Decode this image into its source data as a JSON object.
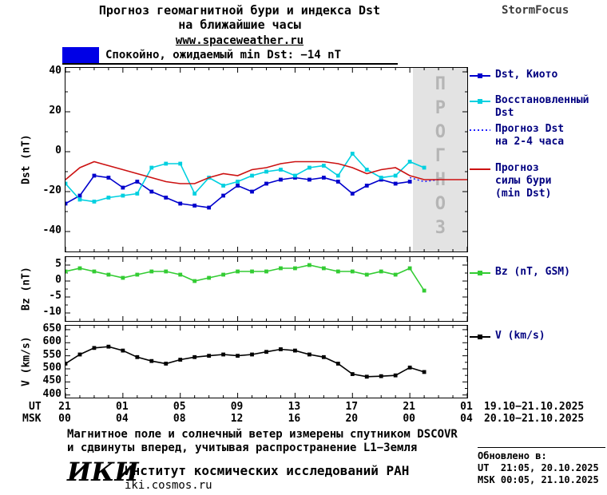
{
  "header": {
    "title_line1": "Прогноз геомагнитной бури и индекса Dst",
    "title_line2": "на ближайшие часы",
    "site": "www.spaceweather.ru",
    "brand": "StormFocus"
  },
  "status": {
    "label": "Спокойно, ожидаемый min Dst: −14 nT",
    "swatch_color": "#0000e6"
  },
  "xaxis": {
    "ut_label": "UT",
    "msk_label": "MSK",
    "ut_ticks": [
      "21",
      "01",
      "05",
      "09",
      "13",
      "17",
      "21",
      "01"
    ],
    "msk_ticks": [
      "00",
      "04",
      "08",
      "12",
      "16",
      "20",
      "00",
      "04"
    ],
    "ut_range": "19.10−21.10.2025",
    "msk_range": "20.10−21.10.2025"
  },
  "legend": {
    "dst_kyoto": {
      "line1": "Dst, Киото"
    },
    "restored": {
      "line1": "Восстановленный",
      "line2": "Dst"
    },
    "forecast_dst": {
      "line1": "Прогноз Dst",
      "line2": "на 2-4 часа"
    },
    "storm_force": {
      "line1": "Прогноз",
      "line2": "силы бури",
      "line3": "(min Dst)"
    },
    "bz": {
      "line1": "Bz (nT, GSM)"
    },
    "v": {
      "line1": "V (km/s)"
    }
  },
  "chart_data": [
    {
      "type": "line",
      "panel": "dst",
      "title": "Прогноз геомагнитной бури и индекса Dst на ближайшие часы",
      "ylabel": "Dst (nT)",
      "ylim": [
        -50,
        42
      ],
      "yticks": [
        40,
        20,
        0,
        -20,
        -40
      ],
      "yminor": [
        30,
        10,
        -10,
        -30
      ],
      "xlim": [
        0,
        28
      ],
      "forecast_band": {
        "from_hour": 24.2,
        "to_hour": 28,
        "label": "ПРОГНОЗ"
      },
      "series": [
        {
          "name": "Dst, Киото",
          "color": "#0000cc",
          "marker": "square",
          "x": [
            0,
            1,
            2,
            3,
            4,
            5,
            6,
            7,
            8,
            9,
            10,
            11,
            12,
            13,
            14,
            15,
            16,
            17,
            18,
            19,
            20,
            21,
            22,
            23,
            24
          ],
          "values": [
            -26,
            -22,
            -12,
            -13,
            -18,
            -15,
            -20,
            -23,
            -26,
            -27,
            -28,
            -22,
            -17,
            -20,
            -16,
            -14,
            -13,
            -14,
            -13,
            -15,
            -21,
            -17,
            -14,
            -16,
            -15
          ]
        },
        {
          "name": "Восстановленный Dst",
          "color": "#00d0e0",
          "marker": "square",
          "x": [
            0,
            1,
            2,
            3,
            4,
            5,
            6,
            7,
            8,
            9,
            10,
            11,
            12,
            13,
            14,
            15,
            16,
            17,
            18,
            19,
            20,
            21,
            22,
            23,
            24,
            25
          ],
          "values": [
            -16,
            -24,
            -25,
            -23,
            -22,
            -21,
            -8,
            -6,
            -6,
            -21,
            -13,
            -17,
            -15,
            -12,
            -10,
            -9,
            -12,
            -8,
            -7,
            -12,
            -1,
            -9,
            -13,
            -12,
            -5,
            -8
          ]
        },
        {
          "name": "Прогноз Dst на 2-4 часа",
          "color": "#2222ff",
          "dash": "dotted",
          "x": [
            24,
            25,
            26
          ],
          "values": [
            -13,
            -15,
            -14
          ]
        },
        {
          "name": "Прогноз силы бури (min Dst)",
          "color": "#cc1111",
          "x": [
            0,
            1,
            2,
            3,
            4,
            5,
            6,
            7,
            8,
            9,
            10,
            11,
            12,
            13,
            14,
            15,
            16,
            17,
            18,
            19,
            20,
            21,
            22,
            23,
            24,
            25,
            26,
            27,
            28
          ],
          "values": [
            -14,
            -8,
            -5,
            -7,
            -9,
            -11,
            -13,
            -15,
            -16,
            -16,
            -13,
            -11,
            -12,
            -9,
            -8,
            -6,
            -5,
            -5,
            -5,
            -6,
            -8,
            -11,
            -9,
            -8,
            -12,
            -14,
            -14,
            -14,
            -14
          ]
        }
      ]
    },
    {
      "type": "line",
      "panel": "bz",
      "ylabel": "Bz (nT)",
      "ylim": [
        -12.5,
        7.5
      ],
      "yticks": [
        5,
        0,
        -5,
        -10
      ],
      "yminor": [
        2.5,
        -2.5,
        -7.5
      ],
      "xlim": [
        0,
        28
      ],
      "series": [
        {
          "name": "Bz (nT, GSM)",
          "color": "#33cc33",
          "marker": "square",
          "x": [
            0,
            1,
            2,
            3,
            4,
            5,
            6,
            7,
            8,
            9,
            10,
            11,
            12,
            13,
            14,
            15,
            16,
            17,
            18,
            19,
            20,
            21,
            22,
            23,
            24,
            25
          ],
          "values": [
            3,
            4,
            3,
            2,
            1,
            2,
            3,
            3,
            2,
            0,
            1,
            2,
            3,
            3,
            3,
            4,
            4,
            5,
            4,
            3,
            3,
            2,
            3,
            2,
            4,
            -3
          ]
        }
      ]
    },
    {
      "type": "line",
      "panel": "v",
      "ylabel": "V (km/s)",
      "ylim": [
        390,
        665
      ],
      "yticks": [
        650,
        600,
        550,
        500,
        450,
        400
      ],
      "yminor": [
        625,
        575,
        525,
        475,
        425
      ],
      "xlim": [
        0,
        28
      ],
      "series": [
        {
          "name": "V (km/s)",
          "color": "#000000",
          "marker": "square",
          "x": [
            0,
            1,
            2,
            3,
            4,
            5,
            6,
            7,
            8,
            9,
            10,
            11,
            12,
            13,
            14,
            15,
            16,
            17,
            18,
            19,
            20,
            21,
            22,
            23,
            24,
            25
          ],
          "values": [
            520,
            555,
            580,
            585,
            570,
            545,
            530,
            520,
            535,
            545,
            550,
            555,
            550,
            555,
            565,
            575,
            570,
            555,
            545,
            520,
            480,
            470,
            472,
            475,
            505,
            488
          ]
        }
      ]
    }
  ],
  "footer": {
    "note1": "Магнитное поле и солнечный ветер измерены спутником DSCOVR",
    "note2": "и сдвинуты вперед, учитывая распространение L1−Земля",
    "updated_title": "Обновлено в:",
    "updated_ut": "UT  21:05, 20.10.2025",
    "updated_msk": "MSK 00:05, 21.10.2025",
    "logo": "ИКИ",
    "institute": "Институт космических исследований РАН",
    "site": "iki.cosmos.ru"
  }
}
